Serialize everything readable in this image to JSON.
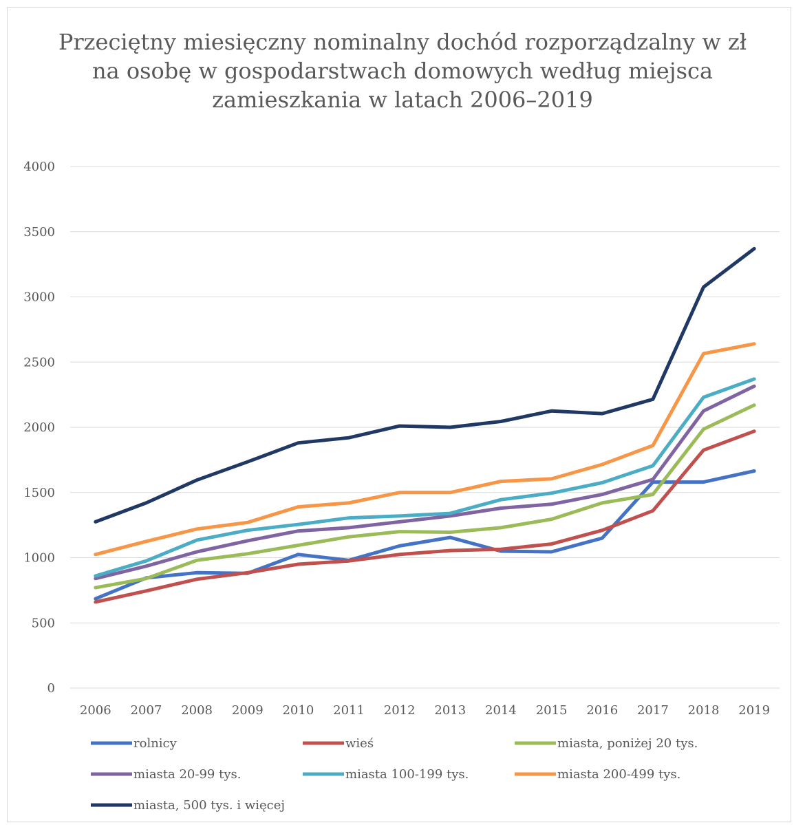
{
  "chart_data": {
    "type": "line",
    "title": "Przeciętny miesięczny nominalny dochód rozporządzalny w zł na osobę w gospodarstwach domowych według miejsca zamieszkania w latach 2006–2019",
    "xlabel": "",
    "ylabel": "",
    "ylim": [
      0,
      4000
    ],
    "yticks": [
      "0",
      "500",
      "1000",
      "1500",
      "2000",
      "2500",
      "3000",
      "3500",
      "4000"
    ],
    "grid": true,
    "legend_position": "bottom",
    "categories": [
      "2006",
      "2007",
      "2008",
      "2009",
      "2010",
      "2011",
      "2012",
      "2013",
      "2014",
      "2015",
      "2016",
      "2017",
      "2018",
      "2019"
    ],
    "series": [
      {
        "name": "rolnicy",
        "color": "#4472C4",
        "values": [
          685,
          845,
          885,
          880,
          1025,
          980,
          1090,
          1155,
          1050,
          1045,
          1150,
          1580,
          1580,
          1665
        ]
      },
      {
        "name": "wieś",
        "color": "#C0504D",
        "values": [
          660,
          745,
          835,
          885,
          950,
          975,
          1025,
          1055,
          1065,
          1105,
          1210,
          1360,
          1825,
          1970
        ]
      },
      {
        "name": "miasta, poniżej 20 tys.",
        "color": "#9BBB59",
        "values": [
          770,
          840,
          980,
          1030,
          1095,
          1160,
          1200,
          1195,
          1230,
          1295,
          1420,
          1485,
          1985,
          2170
        ]
      },
      {
        "name": "miasta 20-99 tys.",
        "color": "#8064A2",
        "values": [
          840,
          935,
          1045,
          1130,
          1205,
          1230,
          1275,
          1320,
          1380,
          1410,
          1485,
          1600,
          2125,
          2315
        ]
      },
      {
        "name": "miasta 100-199 tys.",
        "color": "#4BACC6",
        "values": [
          860,
          975,
          1135,
          1210,
          1255,
          1305,
          1320,
          1340,
          1445,
          1495,
          1575,
          1705,
          2230,
          2370
        ]
      },
      {
        "name": "miasta 200-499 tys.",
        "color": "#F79646",
        "values": [
          1025,
          1125,
          1220,
          1270,
          1390,
          1420,
          1500,
          1500,
          1585,
          1605,
          1715,
          1860,
          2565,
          2640
        ]
      },
      {
        "name": "miasta, 500 tys. i więcej",
        "color": "#1F3864",
        "values": [
          1275,
          1420,
          1595,
          1735,
          1880,
          1920,
          2010,
          2000,
          2045,
          2125,
          2105,
          2215,
          3075,
          3370
        ]
      }
    ]
  }
}
